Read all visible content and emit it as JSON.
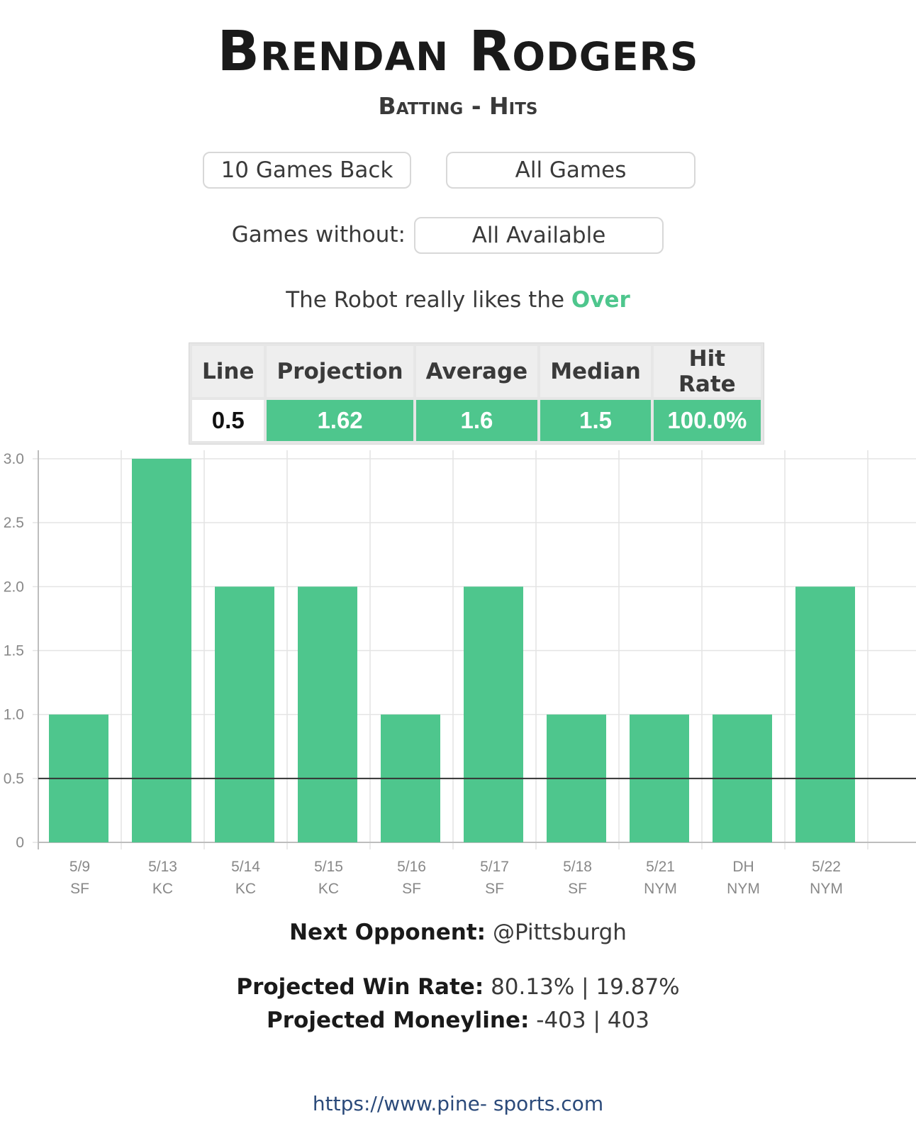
{
  "header": {
    "player_name": "Brendan Rodgers",
    "category": "Batting",
    "separator": "-",
    "stat": "Hits"
  },
  "filters": {
    "games_back": "10 Games Back",
    "game_type": "All Games",
    "without_label": "Games without:",
    "without_value": "All Available"
  },
  "recommendation": {
    "prefix": "The Robot really likes the",
    "pick": "Over",
    "pick_color": "#4ec68d"
  },
  "stats_table": {
    "headers": [
      "Line",
      "Projection",
      "Average",
      "Median",
      "Hit Rate"
    ],
    "values": [
      "0.5",
      "1.62",
      "1.6",
      "1.5",
      "100.0%"
    ]
  },
  "chart_data": {
    "type": "bar",
    "categories": [
      "5/9 SF",
      "5/13 KC",
      "5/14 KC",
      "5/15 KC",
      "5/16 SF",
      "5/17 SF",
      "5/18 SF",
      "5/21 NYM",
      "DH NYM",
      "5/22 NYM"
    ],
    "dates": [
      "5/9",
      "5/13",
      "5/14",
      "5/15",
      "5/16",
      "5/17",
      "5/18",
      "5/21",
      "DH",
      "5/22"
    ],
    "opponents": [
      "SF",
      "KC",
      "KC",
      "KC",
      "SF",
      "SF",
      "SF",
      "NYM",
      "NYM",
      "NYM"
    ],
    "values": [
      1,
      3,
      2,
      2,
      1,
      2,
      1,
      1,
      1,
      2
    ],
    "yticks": [
      "0",
      "0.5",
      "1.0",
      "1.5",
      "2.0",
      "2.5",
      "3.0"
    ],
    "ylim": [
      0,
      3
    ],
    "reference_line": 0.5,
    "bar_color": "#4ec68d",
    "grid": true,
    "title": "",
    "xlabel": "",
    "ylabel": ""
  },
  "matchup": {
    "next_opponent_label": "Next Opponent:",
    "next_opponent_value": "@Pittsburgh",
    "win_rate_label": "Projected Win Rate:",
    "win_rate_value": "80.13% | 19.87%",
    "moneyline_label": "Projected Moneyline:",
    "moneyline_value": "-403 | 403"
  },
  "footer": {
    "url": "https://www.pine- sports.com"
  }
}
